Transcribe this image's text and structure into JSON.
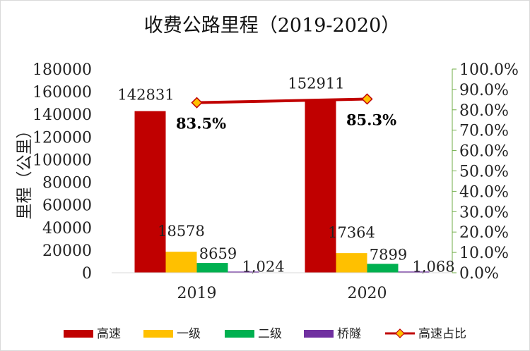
{
  "chart_data": {
    "type": "bar",
    "title": "收费公路里程（2019-2020）",
    "ylabel": "里程（公里）",
    "categories": [
      "2019",
      "2020"
    ],
    "series": [
      {
        "name": "高速",
        "color": "#C00000",
        "values": [
          142831,
          152911
        ],
        "labels": [
          "142831",
          "152911"
        ]
      },
      {
        "name": "一级",
        "color": "#FFC000",
        "values": [
          18578,
          17364
        ],
        "labels": [
          "18578",
          "17364"
        ]
      },
      {
        "name": "二级",
        "color": "#00B050",
        "values": [
          8659,
          7899
        ],
        "labels": [
          "8659",
          "7899"
        ]
      },
      {
        "name": "桥隧",
        "color": "#7030A0",
        "values": [
          1024,
          1068
        ],
        "labels": [
          "1,024",
          "1,068"
        ]
      }
    ],
    "line_series": {
      "name": "高速占比",
      "axis": "secondary",
      "color": "#C00000",
      "marker_color": "#FFC000",
      "values": [
        0.835,
        0.853
      ],
      "labels": [
        "83.5%",
        "85.3%"
      ]
    },
    "ylim": [
      0,
      180000
    ],
    "yticks": [
      "0",
      "20000",
      "40000",
      "60000",
      "80000",
      "100000",
      "120000",
      "140000",
      "160000",
      "180000"
    ],
    "y2lim": [
      0,
      1
    ],
    "y2ticks": [
      "0.0%",
      "10.0%",
      "20.0%",
      "30.0%",
      "40.0%",
      "50.0%",
      "60.0%",
      "70.0%",
      "80.0%",
      "90.0%",
      "100.0%"
    ],
    "grid": false,
    "legend": "bottom"
  }
}
